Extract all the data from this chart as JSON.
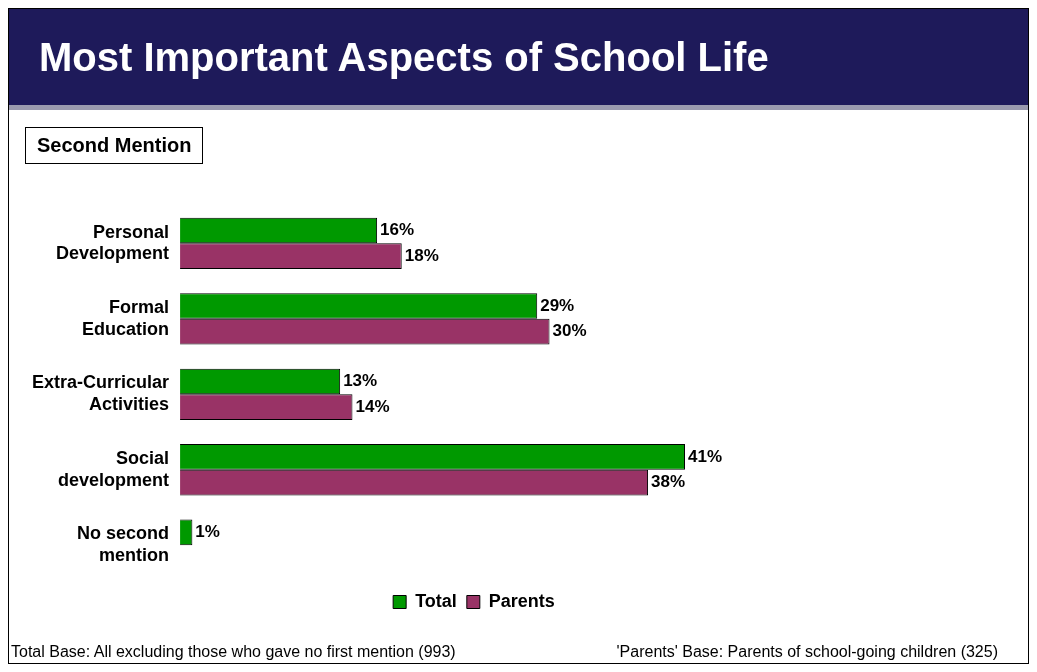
{
  "chart_data": {
    "type": "bar",
    "orientation": "horizontal",
    "title": "Most Important Aspects of School Life",
    "subtitle": "Second Mention",
    "categories": [
      "Personal Development",
      "Formal Education",
      "Extra-Curricular Activities",
      "Social development",
      "No second mention"
    ],
    "series": [
      {
        "name": "Total",
        "color": "#009900",
        "values": [
          16,
          29,
          13,
          41,
          1
        ],
        "value_labels": [
          "16%",
          "29%",
          "13%",
          "41%",
          "1%"
        ]
      },
      {
        "name": "Parents",
        "color": "#993366",
        "values": [
          18,
          30,
          14,
          38,
          null
        ],
        "value_labels": [
          "18%",
          "30%",
          "14%",
          "38%",
          null
        ]
      }
    ],
    "legend": "bottom",
    "annotations": [
      "Total Base: All excluding those who gave no first mention (993)",
      "'Parents' Base: Parents of school-going children (325)"
    ]
  }
}
